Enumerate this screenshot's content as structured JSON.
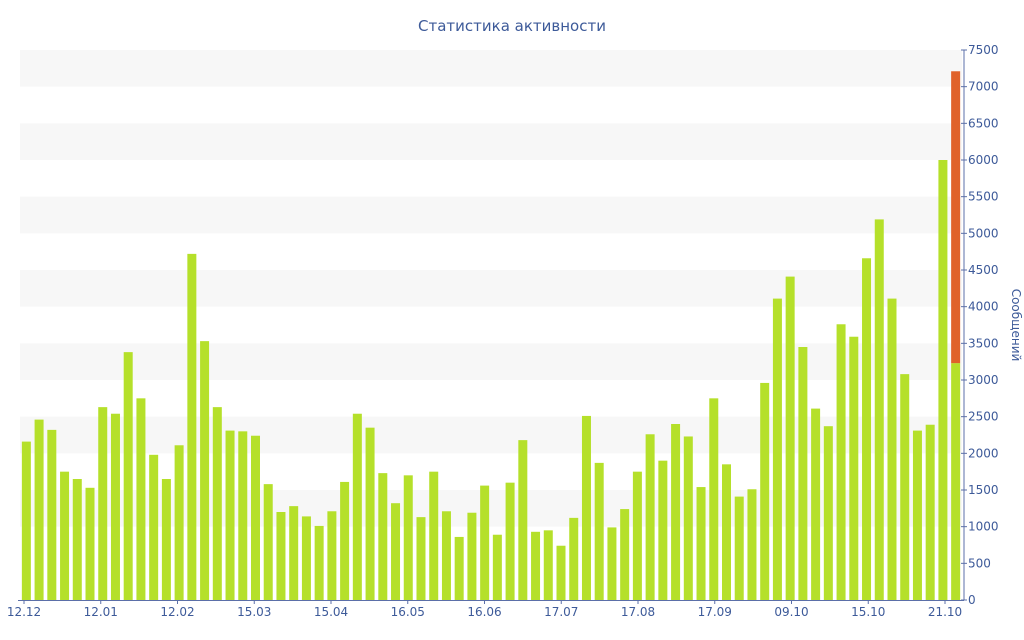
{
  "chart_data": {
    "type": "bar",
    "title": "Статистика активности",
    "xlabel": "",
    "ylabel": "Сообщений",
    "ylim": [
      0,
      7500
    ],
    "y_axis_position": "right",
    "grid": "alternating horizontal bands",
    "x_tick_labels": [
      "12.12",
      "12.01",
      "12.02",
      "15.03",
      "15.04",
      "16.05",
      "16.06",
      "17.07",
      "17.08",
      "17.09",
      "09.10",
      "15.10",
      "21.10"
    ],
    "y_ticks": [
      0,
      500,
      1000,
      1500,
      2000,
      2500,
      3000,
      3500,
      4000,
      4500,
      5000,
      5500,
      6000,
      6500,
      7000,
      7500
    ],
    "colors": {
      "bar": "#b5e02a",
      "highlight": "#e0622a",
      "band": "#f7f7f7",
      "text": "#3d5a99",
      "axis": "#5b6fa8"
    },
    "values": [
      2160,
      2460,
      2320,
      1750,
      1650,
      1530,
      2630,
      2540,
      3380,
      2750,
      1980,
      1650,
      2110,
      4720,
      3530,
      2630,
      2310,
      2300,
      2240,
      1580,
      1200,
      1280,
      1140,
      1010,
      1210,
      1610,
      2540,
      2350,
      1730,
      1320,
      1700,
      1130,
      1750,
      1210,
      860,
      1190,
      1560,
      890,
      1600,
      2180,
      930,
      950,
      740,
      1120,
      2510,
      1870,
      990,
      1240,
      1750,
      2260,
      1900,
      2400,
      2230,
      1540,
      2750,
      1850,
      1410,
      1510,
      2960,
      4110,
      4410,
      3450,
      2610,
      2370,
      3760,
      3590,
      4660,
      5190,
      4110,
      3080,
      2310,
      2390,
      6000,
      3230
    ],
    "highlight_top": 7210
  }
}
